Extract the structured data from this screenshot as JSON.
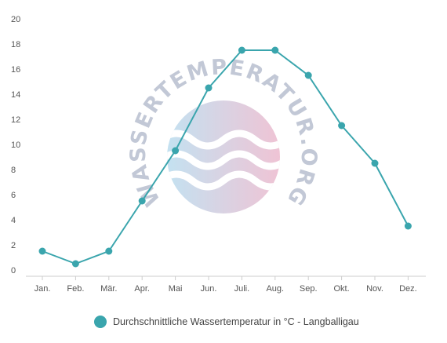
{
  "chart_data": {
    "type": "line",
    "categories": [
      "Jan.",
      "Feb.",
      "Mär.",
      "Apr.",
      "Mai",
      "Jun.",
      "Juli.",
      "Aug.",
      "Sep.",
      "Okt.",
      "Nov.",
      "Dez."
    ],
    "series": [
      {
        "name": "Durchschnittliche Wassertemperatur in °C - Langballigau",
        "values": [
          1.5,
          0.5,
          1.5,
          5.5,
          9.5,
          14.5,
          17.5,
          17.5,
          15.5,
          11.5,
          8.5,
          3.5
        ]
      }
    ],
    "yticks": [
      "0",
      "2",
      "4",
      "6",
      "8",
      "10",
      "12",
      "14",
      "16",
      "18",
      "20"
    ],
    "ylim": [
      0,
      20
    ],
    "grid": false,
    "legend_position": "bottom",
    "colors": {
      "line": "#3aa5ad",
      "marker": "#3aa5ad",
      "axis": "#cccccc"
    }
  },
  "watermark": {
    "text": "WASSERTEMPERATUR.ORG"
  }
}
